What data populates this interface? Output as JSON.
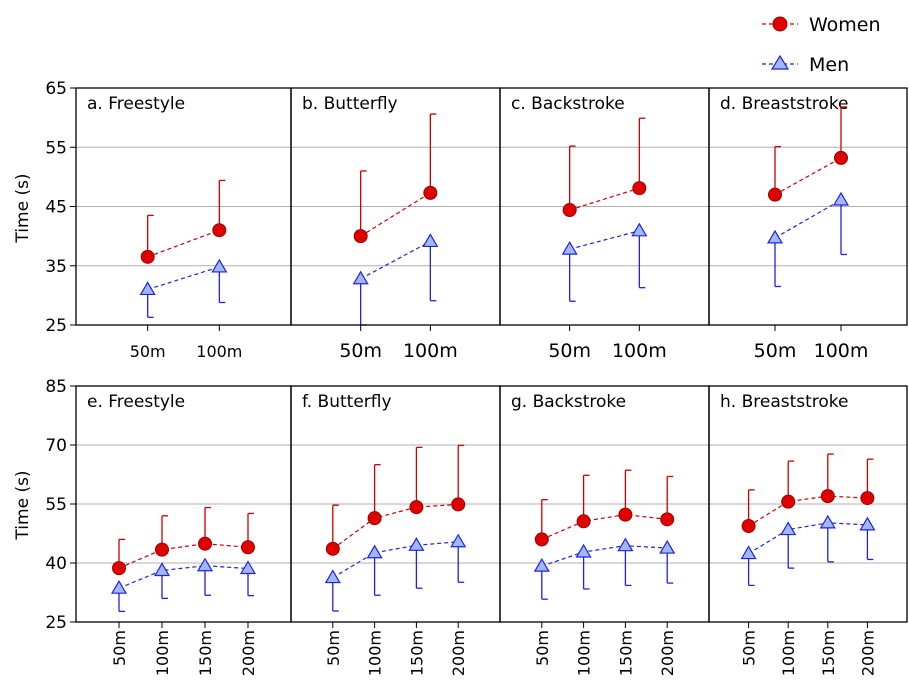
{
  "legend": {
    "placement": "top-right",
    "women": {
      "label": "Women",
      "color": "#cc0000",
      "marker": "circle"
    },
    "men": {
      "label": "Men",
      "color": "#2222dd",
      "marker": "triangle"
    }
  },
  "chart_data": [
    {
      "type": "line",
      "ylabel": "Time (s)",
      "ylim": [
        25,
        65
      ],
      "yticks": [
        "25",
        "35",
        "45",
        "55",
        "65"
      ],
      "grid": true,
      "panels": [
        {
          "title": "a. Freestyle",
          "categories": [
            "50m",
            "100m"
          ],
          "series": [
            {
              "name": "Women",
              "values": [
                36.5,
                41.0
              ],
              "error": [
                7.0,
                8.4
              ]
            },
            {
              "name": "Men",
              "values": [
                31.0,
                34.8
              ],
              "error": [
                4.7,
                6.0
              ]
            }
          ]
        },
        {
          "title": "b. Butterfly",
          "categories": [
            "50m",
            "100m"
          ],
          "series": [
            {
              "name": "Women",
              "values": [
                40.0,
                47.3
              ],
              "error": [
                11.0,
                13.3
              ]
            },
            {
              "name": "Men",
              "values": [
                32.8,
                39.1
              ],
              "error": [
                7.8,
                10.0
              ]
            }
          ]
        },
        {
          "title": "c. Backstroke",
          "categories": [
            "50m",
            "100m"
          ],
          "series": [
            {
              "name": "Women",
              "values": [
                44.4,
                48.1
              ],
              "error": [
                10.8,
                11.8
              ]
            },
            {
              "name": "Men",
              "values": [
                37.8,
                40.9
              ],
              "error": [
                8.8,
                9.6
              ]
            }
          ]
        },
        {
          "title": "d. Breaststroke",
          "categories": [
            "50m",
            "100m"
          ],
          "series": [
            {
              "name": "Women",
              "values": [
                47.0,
                53.2
              ],
              "error": [
                8.1,
                8.6
              ]
            },
            {
              "name": "Men",
              "values": [
                39.7,
                46.1
              ],
              "error": [
                8.2,
                9.2
              ]
            }
          ]
        }
      ]
    },
    {
      "type": "line",
      "ylabel": "Time (s)",
      "ylim": [
        25,
        85
      ],
      "yticks": [
        "25",
        "40",
        "55",
        "70",
        "85"
      ],
      "grid": true,
      "panels": [
        {
          "title": "e. Freestyle",
          "categories": [
            "50m",
            "100m",
            "150m",
            "200m"
          ],
          "series": [
            {
              "name": "Women",
              "values": [
                38.7,
                43.4,
                44.9,
                44.0
              ],
              "error": [
                7.3,
                8.6,
                9.2,
                8.6
              ]
            },
            {
              "name": "Men",
              "values": [
                33.6,
                38.1,
                39.3,
                38.6
              ],
              "error": [
                5.9,
                7.1,
                7.5,
                6.9
              ]
            }
          ]
        },
        {
          "title": "f. Butterfly",
          "categories": [
            "50m",
            "100m",
            "150m",
            "200m"
          ],
          "series": [
            {
              "name": "Women",
              "values": [
                43.6,
                51.4,
                54.2,
                54.9
              ],
              "error": [
                11.1,
                13.6,
                15.2,
                15.0
              ]
            },
            {
              "name": "Men",
              "values": [
                36.3,
                42.6,
                44.5,
                45.4
              ],
              "error": [
                8.5,
                10.8,
                10.9,
                10.3
              ]
            }
          ]
        },
        {
          "title": "g. Backstroke",
          "categories": [
            "50m",
            "100m",
            "150m",
            "200m"
          ],
          "series": [
            {
              "name": "Women",
              "values": [
                46.0,
                50.6,
                52.3,
                51.1
              ],
              "error": [
                10.1,
                11.7,
                11.3,
                10.9
              ]
            },
            {
              "name": "Men",
              "values": [
                39.2,
                42.8,
                44.4,
                43.8
              ],
              "error": [
                8.4,
                9.4,
                10.1,
                8.9
              ]
            }
          ]
        },
        {
          "title": "h. Breaststroke",
          "categories": [
            "50m",
            "100m",
            "150m",
            "200m"
          ],
          "series": [
            {
              "name": "Women",
              "values": [
                49.4,
                55.6,
                57.0,
                56.5
              ],
              "error": [
                9.2,
                10.3,
                10.7,
                9.9
              ]
            },
            {
              "name": "Men",
              "values": [
                42.4,
                48.5,
                50.2,
                49.7
              ],
              "error": [
                8.1,
                9.8,
                9.9,
                8.8
              ]
            }
          ]
        }
      ]
    }
  ]
}
